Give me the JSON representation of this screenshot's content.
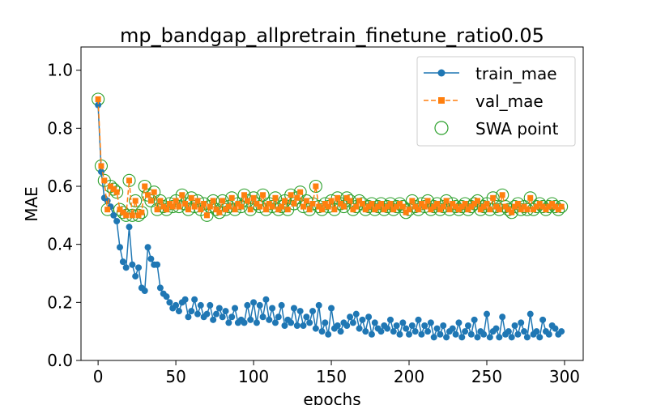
{
  "chart_data": {
    "type": "line",
    "title": "mp_bandgap_allpretrain_finetune_ratio0.05",
    "xlabel": "epochs",
    "ylabel": "MAE",
    "xlim": [
      -11,
      312
    ],
    "ylim": [
      0,
      1.08
    ],
    "xticks": [
      0,
      50,
      100,
      150,
      200,
      250,
      300
    ],
    "yticks": [
      0.0,
      0.2,
      0.4,
      0.6,
      0.8,
      1.0
    ],
    "grid": false,
    "legend_position": "upper right",
    "colors": {
      "train": "#1f77b4",
      "val": "#ff7f0e",
      "swa": "#2ca02c"
    },
    "series": [
      {
        "name": "train_mae",
        "style": "solid line, circle markers",
        "x": [
          0,
          2,
          4,
          6,
          8,
          10,
          12,
          14,
          16,
          18,
          20,
          22,
          24,
          26,
          28,
          30,
          32,
          34,
          36,
          38,
          40,
          42,
          44,
          46,
          48,
          50,
          52,
          54,
          56,
          58,
          60,
          62,
          64,
          66,
          68,
          70,
          72,
          74,
          76,
          78,
          80,
          82,
          84,
          86,
          88,
          90,
          92,
          94,
          96,
          98,
          100,
          102,
          104,
          106,
          108,
          110,
          112,
          114,
          116,
          118,
          120,
          122,
          124,
          126,
          128,
          130,
          132,
          134,
          136,
          138,
          140,
          142,
          144,
          146,
          148,
          150,
          152,
          154,
          156,
          158,
          160,
          162,
          164,
          166,
          168,
          170,
          172,
          174,
          176,
          178,
          180,
          182,
          184,
          186,
          188,
          190,
          192,
          194,
          196,
          198,
          200,
          202,
          204,
          206,
          208,
          210,
          212,
          214,
          216,
          218,
          220,
          222,
          224,
          226,
          228,
          230,
          232,
          234,
          236,
          238,
          240,
          242,
          244,
          246,
          248,
          250,
          252,
          254,
          256,
          258,
          260,
          262,
          264,
          266,
          268,
          270,
          272,
          274,
          276,
          278,
          280,
          282,
          284,
          286,
          288,
          290,
          292,
          294,
          296,
          298
        ],
        "y": [
          0.88,
          0.65,
          0.56,
          0.55,
          0.53,
          0.5,
          0.48,
          0.39,
          0.34,
          0.32,
          0.46,
          0.33,
          0.29,
          0.32,
          0.25,
          0.24,
          0.39,
          0.35,
          0.33,
          0.33,
          0.25,
          0.23,
          0.22,
          0.2,
          0.18,
          0.19,
          0.17,
          0.2,
          0.21,
          0.15,
          0.17,
          0.21,
          0.16,
          0.19,
          0.15,
          0.16,
          0.19,
          0.14,
          0.16,
          0.18,
          0.15,
          0.17,
          0.13,
          0.15,
          0.18,
          0.13,
          0.14,
          0.13,
          0.19,
          0.14,
          0.2,
          0.13,
          0.19,
          0.15,
          0.21,
          0.14,
          0.18,
          0.13,
          0.15,
          0.19,
          0.12,
          0.14,
          0.13,
          0.18,
          0.12,
          0.17,
          0.12,
          0.15,
          0.13,
          0.17,
          0.11,
          0.19,
          0.1,
          0.13,
          0.09,
          0.18,
          0.11,
          0.12,
          0.1,
          0.13,
          0.12,
          0.15,
          0.13,
          0.16,
          0.11,
          0.14,
          0.1,
          0.15,
          0.09,
          0.13,
          0.11,
          0.1,
          0.12,
          0.11,
          0.14,
          0.1,
          0.12,
          0.09,
          0.13,
          0.11,
          0.09,
          0.12,
          0.1,
          0.14,
          0.09,
          0.12,
          0.1,
          0.13,
          0.08,
          0.11,
          0.09,
          0.12,
          0.08,
          0.1,
          0.11,
          0.09,
          0.13,
          0.08,
          0.1,
          0.12,
          0.09,
          0.14,
          0.08,
          0.1,
          0.09,
          0.16,
          0.08,
          0.1,
          0.11,
          0.08,
          0.15,
          0.09,
          0.1,
          0.08,
          0.12,
          0.09,
          0.13,
          0.1,
          0.08,
          0.16,
          0.09,
          0.1,
          0.08,
          0.14,
          0.1,
          0.09,
          0.12,
          0.11,
          0.09,
          0.1
        ]
      },
      {
        "name": "val_mae",
        "style": "dashed line, square markers",
        "x": [
          0,
          2,
          4,
          6,
          8,
          10,
          12,
          14,
          16,
          18,
          20,
          22,
          24,
          26,
          28,
          30,
          32,
          34,
          36,
          38,
          40,
          42,
          44,
          46,
          48,
          50,
          52,
          54,
          56,
          58,
          60,
          62,
          64,
          66,
          68,
          70,
          72,
          74,
          76,
          78,
          80,
          82,
          84,
          86,
          88,
          90,
          92,
          94,
          96,
          98,
          100,
          102,
          104,
          106,
          108,
          110,
          112,
          114,
          116,
          118,
          120,
          122,
          124,
          126,
          128,
          130,
          132,
          134,
          136,
          138,
          140,
          142,
          144,
          146,
          148,
          150,
          152,
          154,
          156,
          158,
          160,
          162,
          164,
          166,
          168,
          170,
          172,
          174,
          176,
          178,
          180,
          182,
          184,
          186,
          188,
          190,
          192,
          194,
          196,
          198,
          200,
          202,
          204,
          206,
          208,
          210,
          212,
          214,
          216,
          218,
          220,
          222,
          224,
          226,
          228,
          230,
          232,
          234,
          236,
          238,
          240,
          242,
          244,
          246,
          248,
          250,
          252,
          254,
          256,
          258,
          260,
          262,
          264,
          266,
          268,
          270,
          272,
          274,
          276,
          278,
          280,
          282,
          284,
          286,
          288,
          290,
          292,
          294,
          296,
          298
        ],
        "y": [
          0.9,
          0.67,
          0.62,
          0.52,
          0.6,
          0.59,
          0.58,
          0.52,
          0.51,
          0.5,
          0.62,
          0.5,
          0.55,
          0.5,
          0.51,
          0.6,
          0.57,
          0.55,
          0.58,
          0.52,
          0.55,
          0.53,
          0.52,
          0.54,
          0.53,
          0.55,
          0.53,
          0.57,
          0.54,
          0.52,
          0.56,
          0.53,
          0.55,
          0.52,
          0.54,
          0.5,
          0.53,
          0.55,
          0.52,
          0.51,
          0.55,
          0.52,
          0.53,
          0.56,
          0.52,
          0.54,
          0.53,
          0.57,
          0.55,
          0.52,
          0.56,
          0.54,
          0.53,
          0.57,
          0.52,
          0.54,
          0.53,
          0.56,
          0.52,
          0.53,
          0.55,
          0.52,
          0.57,
          0.54,
          0.56,
          0.58,
          0.53,
          0.55,
          0.52,
          0.54,
          0.6,
          0.53,
          0.52,
          0.54,
          0.53,
          0.55,
          0.52,
          0.56,
          0.54,
          0.53,
          0.56,
          0.55,
          0.52,
          0.53,
          0.55,
          0.54,
          0.52,
          0.53,
          0.54,
          0.52,
          0.53,
          0.54,
          0.52,
          0.53,
          0.54,
          0.52,
          0.53,
          0.54,
          0.53,
          0.51,
          0.52,
          0.55,
          0.53,
          0.52,
          0.54,
          0.53,
          0.55,
          0.52,
          0.53,
          0.54,
          0.52,
          0.53,
          0.55,
          0.52,
          0.54,
          0.53,
          0.52,
          0.53,
          0.54,
          0.52,
          0.53,
          0.54,
          0.55,
          0.52,
          0.53,
          0.54,
          0.52,
          0.56,
          0.53,
          0.52,
          0.57,
          0.53,
          0.52,
          0.51,
          0.53,
          0.54,
          0.52,
          0.53,
          0.52,
          0.56,
          0.52,
          0.53,
          0.54,
          0.53,
          0.52,
          0.53,
          0.54,
          0.53,
          0.52,
          0.53
        ]
      },
      {
        "name": "SWA point",
        "style": "hollow circle markers (no line), drawn on the val_mae points",
        "same_as": "val_mae"
      }
    ]
  }
}
